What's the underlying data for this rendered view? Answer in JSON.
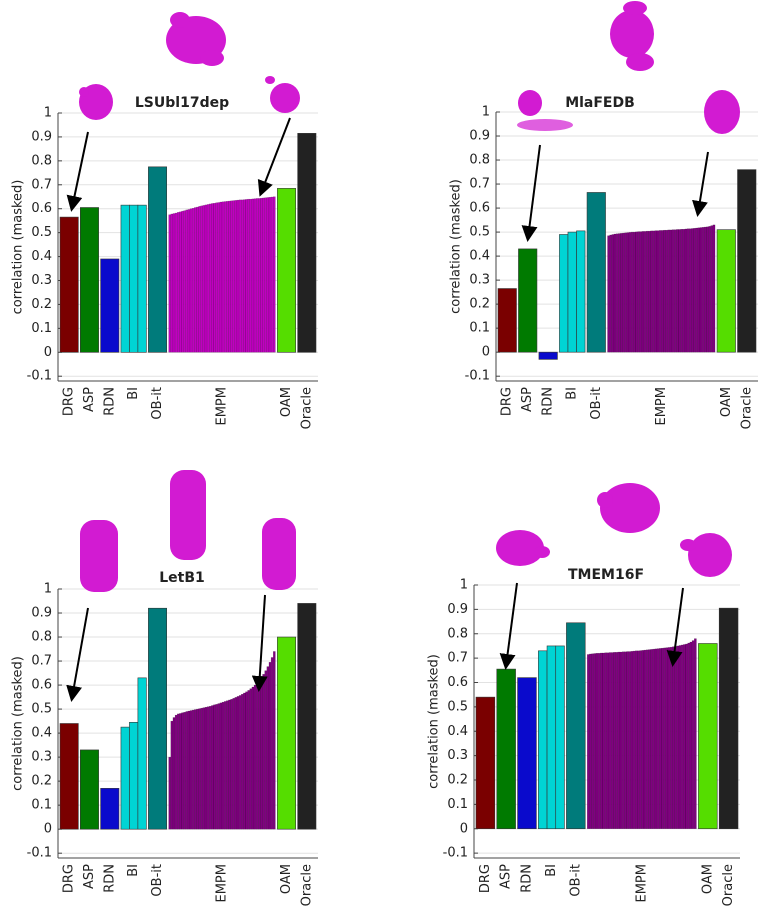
{
  "chart_data": [
    {
      "type": "bar",
      "title": "LSUbl17dep",
      "y_label": "correlation (masked)",
      "ylim": [
        -0.12,
        1
      ],
      "yticks": [
        -0.1,
        0,
        0.1,
        0.2,
        0.3,
        0.4,
        0.5,
        0.6,
        0.7,
        0.8,
        0.9,
        1
      ],
      "grid": true,
      "series": [
        {
          "name": "DRG",
          "color": "#7a0000",
          "values": [
            0.565
          ]
        },
        {
          "name": "ASP",
          "color": "#007a00",
          "values": [
            0.605
          ]
        },
        {
          "name": "RDN",
          "color": "#0a0acc",
          "values": [
            0.39
          ]
        },
        {
          "name": "BI",
          "color": "#00d4d4",
          "values": [
            0.615,
            0.615,
            0.615
          ]
        },
        {
          "name": "OB-it",
          "color": "#007b7b",
          "values": [
            0.775
          ]
        },
        {
          "name": "EMPM",
          "color": "#c000c0",
          "values": [
            0.575,
            0.578,
            0.58,
            0.582,
            0.585,
            0.587,
            0.59,
            0.592,
            0.595,
            0.597,
            0.6,
            0.602,
            0.605,
            0.607,
            0.61,
            0.612,
            0.614,
            0.616,
            0.618,
            0.62,
            0.622,
            0.623,
            0.625,
            0.626,
            0.628,
            0.629,
            0.63,
            0.631,
            0.632,
            0.633,
            0.634,
            0.635,
            0.636,
            0.637,
            0.637,
            0.638,
            0.639,
            0.64,
            0.64,
            0.641,
            0.642,
            0.643,
            0.643,
            0.644,
            0.645,
            0.646,
            0.647,
            0.648,
            0.649,
            0.65
          ]
        },
        {
          "name": "OAM",
          "color": "#55dd00",
          "values": [
            0.685
          ]
        },
        {
          "name": "Oracle",
          "color": "#222222",
          "values": [
            0.915
          ]
        }
      ]
    },
    {
      "type": "bar",
      "title": "MlaFEDB",
      "y_label": "correlation (masked)",
      "ylim": [
        -0.12,
        1
      ],
      "yticks": [
        -0.1,
        0,
        0.1,
        0.2,
        0.3,
        0.4,
        0.5,
        0.6,
        0.7,
        0.8,
        0.9,
        1
      ],
      "grid": true,
      "series": [
        {
          "name": "DRG",
          "color": "#7a0000",
          "values": [
            0.265
          ]
        },
        {
          "name": "ASP",
          "color": "#007a00",
          "values": [
            0.43
          ]
        },
        {
          "name": "RDN",
          "color": "#0a0acc",
          "values": [
            -0.03
          ]
        },
        {
          "name": "BI",
          "color": "#00d4d4",
          "values": [
            0.49,
            0.5,
            0.505
          ]
        },
        {
          "name": "OB-it",
          "color": "#007b7b",
          "values": [
            0.665
          ]
        },
        {
          "name": "EMPM",
          "color": "#800080",
          "values": [
            0.485,
            0.488,
            0.49,
            0.492,
            0.493,
            0.494,
            0.495,
            0.496,
            0.497,
            0.498,
            0.499,
            0.5,
            0.5,
            0.501,
            0.502,
            0.502,
            0.503,
            0.503,
            0.504,
            0.504,
            0.505,
            0.505,
            0.506,
            0.506,
            0.507,
            0.507,
            0.508,
            0.508,
            0.509,
            0.509,
            0.51,
            0.51,
            0.511,
            0.511,
            0.512,
            0.512,
            0.513,
            0.514,
            0.514,
            0.515,
            0.516,
            0.517,
            0.518,
            0.519,
            0.52,
            0.521,
            0.522,
            0.524,
            0.527,
            0.53
          ]
        },
        {
          "name": "OAM",
          "color": "#55dd00",
          "values": [
            0.51
          ]
        },
        {
          "name": "Oracle",
          "color": "#222222",
          "values": [
            0.76
          ]
        }
      ]
    },
    {
      "type": "bar",
      "title": "LetB1",
      "y_label": "correlation (masked)",
      "ylim": [
        -0.12,
        1
      ],
      "yticks": [
        -0.1,
        0,
        0.1,
        0.2,
        0.3,
        0.4,
        0.5,
        0.6,
        0.7,
        0.8,
        0.9,
        1
      ],
      "grid": true,
      "series": [
        {
          "name": "DRG",
          "color": "#7a0000",
          "values": [
            0.44
          ]
        },
        {
          "name": "ASP",
          "color": "#007a00",
          "values": [
            0.33
          ]
        },
        {
          "name": "RDN",
          "color": "#0a0acc",
          "values": [
            0.17
          ]
        },
        {
          "name": "BI",
          "color": "#00d4d4",
          "values": [
            0.425,
            0.445,
            0.63
          ]
        },
        {
          "name": "OB-it",
          "color": "#007b7b",
          "values": [
            0.92
          ]
        },
        {
          "name": "EMPM",
          "color": "#800080",
          "values": [
            0.3,
            0.45,
            0.465,
            0.475,
            0.48,
            0.482,
            0.485,
            0.487,
            0.49,
            0.492,
            0.494,
            0.496,
            0.498,
            0.5,
            0.502,
            0.504,
            0.506,
            0.508,
            0.51,
            0.512,
            0.515,
            0.518,
            0.52,
            0.523,
            0.526,
            0.529,
            0.532,
            0.535,
            0.538,
            0.541,
            0.545,
            0.549,
            0.553,
            0.557,
            0.562,
            0.567,
            0.572,
            0.578,
            0.585,
            0.592,
            0.6,
            0.61,
            0.62,
            0.632,
            0.645,
            0.66,
            0.677,
            0.695,
            0.715,
            0.74
          ]
        },
        {
          "name": "OAM",
          "color": "#55dd00",
          "values": [
            0.8
          ]
        },
        {
          "name": "Oracle",
          "color": "#222222",
          "values": [
            0.94
          ]
        }
      ]
    },
    {
      "type": "bar",
      "title": "TMEM16F",
      "y_label": "correlation (masked)",
      "ylim": [
        -0.12,
        1
      ],
      "yticks": [
        -0.1,
        0,
        0.1,
        0.2,
        0.3,
        0.4,
        0.5,
        0.6,
        0.7,
        0.8,
        0.9,
        1
      ],
      "grid": true,
      "series": [
        {
          "name": "DRG",
          "color": "#7a0000",
          "values": [
            0.54
          ]
        },
        {
          "name": "ASP",
          "color": "#007a00",
          "values": [
            0.655
          ]
        },
        {
          "name": "RDN",
          "color": "#0a0acc",
          "values": [
            0.62
          ]
        },
        {
          "name": "BI",
          "color": "#00d4d4",
          "values": [
            0.73,
            0.75,
            0.75
          ]
        },
        {
          "name": "OB-it",
          "color": "#007b7b",
          "values": [
            0.845
          ]
        },
        {
          "name": "EMPM",
          "color": "#800080",
          "values": [
            0.715,
            0.717,
            0.718,
            0.719,
            0.72,
            0.72,
            0.721,
            0.721,
            0.722,
            0.722,
            0.723,
            0.723,
            0.724,
            0.724,
            0.725,
            0.725,
            0.726,
            0.726,
            0.727,
            0.727,
            0.728,
            0.729,
            0.73,
            0.73,
            0.731,
            0.732,
            0.733,
            0.734,
            0.735,
            0.736,
            0.737,
            0.738,
            0.739,
            0.74,
            0.741,
            0.742,
            0.743,
            0.744,
            0.745,
            0.747,
            0.748,
            0.75,
            0.752,
            0.754,
            0.756,
            0.758,
            0.762,
            0.766,
            0.772,
            0.78
          ]
        },
        {
          "name": "OAM",
          "color": "#55dd00",
          "values": [
            0.76
          ]
        },
        {
          "name": "Oracle",
          "color": "#222222",
          "values": [
            0.905
          ]
        }
      ]
    }
  ]
}
